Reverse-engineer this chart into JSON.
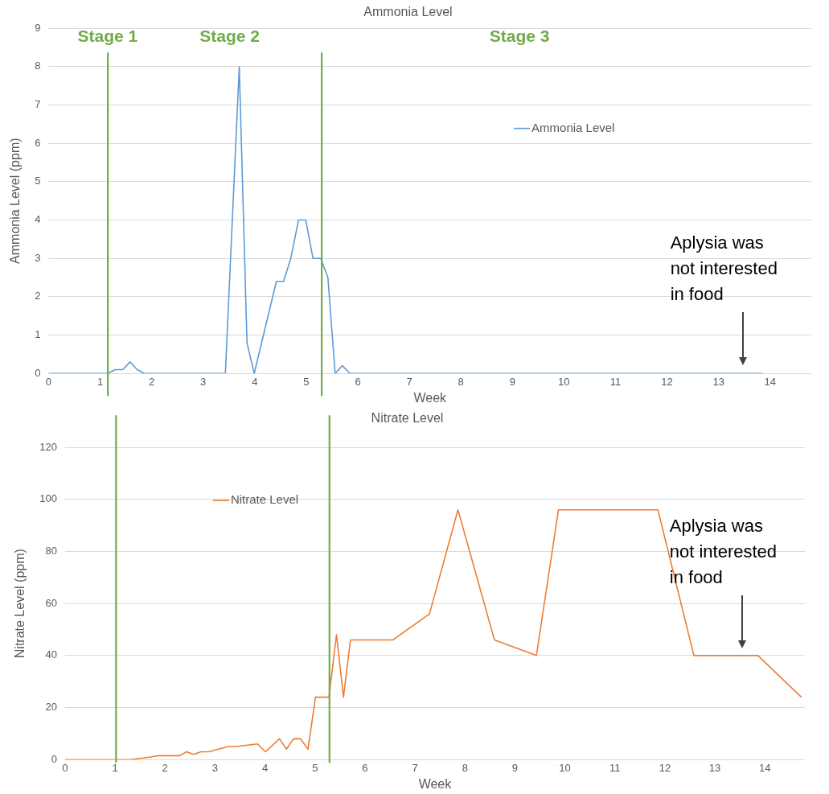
{
  "chart_data": [
    {
      "type": "line",
      "title": "Ammonia Level",
      "xlabel": "Week",
      "ylabel": "Ammonia Level (ppm)",
      "series": [
        {
          "name": "Ammonia Level",
          "color": "#5b9bd5",
          "x": [
            0,
            1.15,
            1.29,
            1.44,
            1.58,
            1.72,
            1.86,
            3.43,
            3.7,
            3.85,
            3.99,
            4.42,
            4.56,
            4.7,
            4.85,
            4.99,
            5.13,
            5.28,
            5.42,
            5.56,
            5.7,
            5.85,
            13.86
          ],
          "values": [
            0,
            0,
            0.1,
            0.1,
            0.3,
            0.1,
            0,
            0,
            8,
            0.8,
            0,
            2.4,
            2.4,
            3,
            4,
            4,
            3,
            3,
            2.5,
            0,
            0.2,
            0,
            0
          ]
        }
      ],
      "xlim": [
        0,
        14.8
      ],
      "xticks": [
        0,
        1,
        2,
        3,
        4,
        5,
        6,
        7,
        8,
        9,
        10,
        11,
        12,
        13,
        14
      ],
      "ylim": [
        0,
        9
      ],
      "yticks": [
        0,
        1,
        2,
        3,
        4,
        5,
        6,
        7,
        8,
        9
      ],
      "grid": "y",
      "legend": "top right",
      "marker": "none",
      "ref_lines": [
        {
          "axis": "x",
          "value": 1.15,
          "color": "#70ad47"
        },
        {
          "axis": "x",
          "value": 5.3,
          "color": "#70ad47"
        }
      ],
      "annotations": [
        "Stage 1",
        "Stage 2",
        "Stage 3",
        "Aplysia was not interested in food"
      ]
    },
    {
      "type": "line",
      "title": "Nitrate Level",
      "xlabel": "Week",
      "ylabel": "Nitrate Level (ppm)",
      "series": [
        {
          "name": "Nitrate Level",
          "color": "#ed7d31",
          "x": [
            0,
            1.31,
            1.71,
            1.86,
            2.29,
            2.43,
            2.57,
            2.72,
            2.87,
            3.27,
            3.42,
            3.85,
            4.01,
            4.29,
            4.43,
            4.57,
            4.71,
            4.86,
            5.01,
            5.28,
            5.43,
            5.57,
            5.71,
            6.56,
            7.29,
            7.86,
            8.59,
            9.43,
            9.87,
            11.86,
            12.58,
            13.86,
            14.73
          ],
          "values": [
            0,
            0,
            1,
            1.5,
            1.5,
            3,
            2,
            3,
            3,
            5,
            5,
            6,
            3,
            8,
            4,
            8,
            8,
            4,
            24,
            24,
            48,
            24,
            46,
            46,
            56,
            96,
            46,
            40,
            96,
            96,
            40,
            40,
            24
          ]
        }
      ],
      "xlim": [
        0,
        14.8
      ],
      "xticks": [
        0,
        1,
        2,
        3,
        4,
        5,
        6,
        7,
        8,
        9,
        10,
        11,
        12,
        13,
        14
      ],
      "ylim": [
        0,
        120
      ],
      "yticks": [
        0,
        20,
        40,
        60,
        80,
        100,
        120
      ],
      "grid": "y",
      "legend": "top left",
      "marker": "none",
      "ref_lines": [
        {
          "axis": "x",
          "value": 1.02,
          "color": "#70ad47"
        },
        {
          "axis": "x",
          "value": 5.29,
          "color": "#70ad47"
        }
      ],
      "annotations": [
        "Aplysia was not interested in food"
      ]
    }
  ]
}
